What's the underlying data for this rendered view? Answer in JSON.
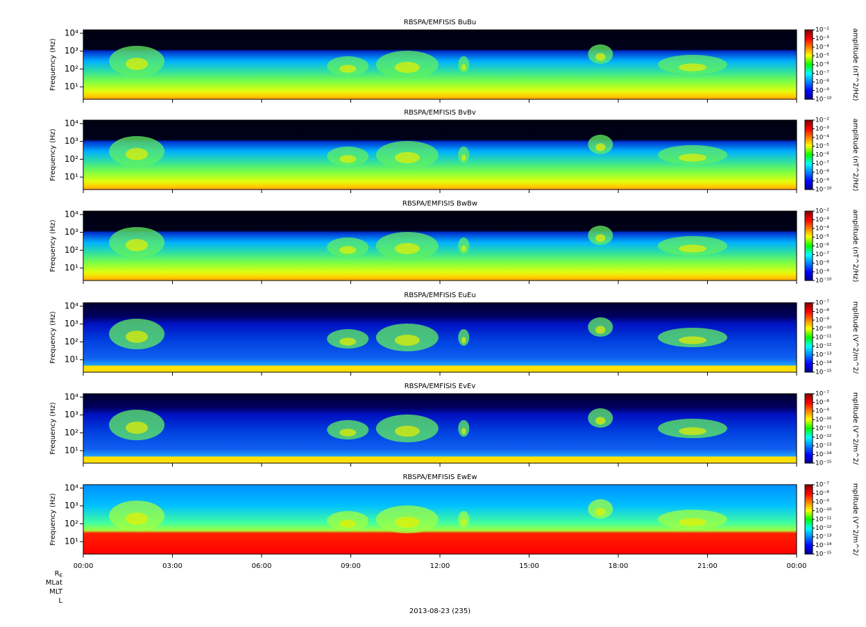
{
  "chart_data": [
    {
      "type": "spectrogram",
      "title": "RBSPA/EMFISIS  BuBu",
      "ylabel": "Frequency (Hz)",
      "ylim": [
        2,
        15600
      ],
      "log_y": true,
      "yticks": [
        {
          "value": 10,
          "label": "10¹"
        },
        {
          "value": 100,
          "label": "10²"
        },
        {
          "value": 1000,
          "label": "10³"
        },
        {
          "value": 10000,
          "label": "10⁴"
        }
      ],
      "colorbar_label": "amplitude (nT^2/Hz)",
      "clim": [
        1e-10,
        0.01
      ],
      "cticks": [
        {
          "value": 0.01,
          "label": "10⁻²"
        },
        {
          "value": 0.001,
          "label": "10⁻³"
        },
        {
          "value": 0.0001,
          "label": "10⁻⁴"
        },
        {
          "value": 1e-05,
          "label": "10⁻⁵"
        },
        {
          "value": 1e-06,
          "label": "10⁻⁶"
        },
        {
          "value": 1e-07,
          "label": "10⁻⁷"
        },
        {
          "value": 1e-08,
          "label": "10⁻⁸"
        },
        {
          "value": 1e-09,
          "label": "10⁻⁹"
        },
        {
          "value": 1e-10,
          "label": "10⁻¹⁰"
        }
      ]
    },
    {
      "type": "spectrogram",
      "title": "RBSPA/EMFISIS  BvBv",
      "ylabel": "Frequency (Hz)",
      "ylim": [
        2,
        15600
      ],
      "log_y": true,
      "yticks": [
        {
          "value": 10,
          "label": "10¹"
        },
        {
          "value": 100,
          "label": "10²"
        },
        {
          "value": 1000,
          "label": "10³"
        },
        {
          "value": 10000,
          "label": "10⁴"
        }
      ],
      "colorbar_label": "amplitude (nT^2/Hz)",
      "clim": [
        1e-10,
        0.01
      ],
      "cticks": [
        {
          "value": 0.01,
          "label": "10⁻²"
        },
        {
          "value": 0.001,
          "label": "10⁻³"
        },
        {
          "value": 0.0001,
          "label": "10⁻⁴"
        },
        {
          "value": 1e-05,
          "label": "10⁻⁵"
        },
        {
          "value": 1e-06,
          "label": "10⁻⁶"
        },
        {
          "value": 1e-07,
          "label": "10⁻⁷"
        },
        {
          "value": 1e-08,
          "label": "10⁻⁸"
        },
        {
          "value": 1e-09,
          "label": "10⁻⁹"
        },
        {
          "value": 1e-10,
          "label": "10⁻¹⁰"
        }
      ]
    },
    {
      "type": "spectrogram",
      "title": "RBSPA/EMFISIS  BwBw",
      "ylabel": "Frequency (Hz)",
      "ylim": [
        2,
        15600
      ],
      "log_y": true,
      "yticks": [
        {
          "value": 10,
          "label": "10¹"
        },
        {
          "value": 100,
          "label": "10²"
        },
        {
          "value": 1000,
          "label": "10³"
        },
        {
          "value": 10000,
          "label": "10⁴"
        }
      ],
      "colorbar_label": "amplitude (nT^2/Hz)",
      "clim": [
        1e-10,
        0.01
      ],
      "cticks": [
        {
          "value": 0.01,
          "label": "10⁻²"
        },
        {
          "value": 0.001,
          "label": "10⁻³"
        },
        {
          "value": 0.0001,
          "label": "10⁻⁴"
        },
        {
          "value": 1e-05,
          "label": "10⁻⁵"
        },
        {
          "value": 1e-06,
          "label": "10⁻⁶"
        },
        {
          "value": 1e-07,
          "label": "10⁻⁷"
        },
        {
          "value": 1e-08,
          "label": "10⁻⁸"
        },
        {
          "value": 1e-09,
          "label": "10⁻⁹"
        },
        {
          "value": 1e-10,
          "label": "10⁻¹⁰"
        }
      ]
    },
    {
      "type": "spectrogram",
      "title": "RBSPA/EMFISIS  EuEu",
      "ylabel": "Frequency (Hz)",
      "ylim": [
        2,
        15600
      ],
      "log_y": true,
      "yticks": [
        {
          "value": 10,
          "label": "10¹"
        },
        {
          "value": 100,
          "label": "10²"
        },
        {
          "value": 1000,
          "label": "10³"
        },
        {
          "value": 10000,
          "label": "10⁴"
        }
      ],
      "colorbar_label": "mplitude (V^2/m^2/",
      "clim": [
        1e-15,
        1e-07
      ],
      "cticks": [
        {
          "value": 1e-07,
          "label": "10⁻⁷"
        },
        {
          "value": 1e-08,
          "label": "10⁻⁸"
        },
        {
          "value": 1e-09,
          "label": "10⁻⁹"
        },
        {
          "value": 1e-10,
          "label": "10⁻¹⁰"
        },
        {
          "value": 1e-11,
          "label": "10⁻¹¹"
        },
        {
          "value": 1e-12,
          "label": "10⁻¹²"
        },
        {
          "value": 1e-13,
          "label": "10⁻¹³"
        },
        {
          "value": 1e-14,
          "label": "10⁻¹⁴"
        },
        {
          "value": 1e-15,
          "label": "10⁻¹⁵"
        }
      ]
    },
    {
      "type": "spectrogram",
      "title": "RBSPA/EMFISIS  EvEv",
      "ylabel": "Frequency (Hz)",
      "ylim": [
        2,
        15600
      ],
      "log_y": true,
      "yticks": [
        {
          "value": 10,
          "label": "10¹"
        },
        {
          "value": 100,
          "label": "10²"
        },
        {
          "value": 1000,
          "label": "10³"
        },
        {
          "value": 10000,
          "label": "10⁴"
        }
      ],
      "colorbar_label": "mplitude (V^2/m^2/",
      "clim": [
        1e-15,
        1e-07
      ],
      "cticks": [
        {
          "value": 1e-07,
          "label": "10⁻⁷"
        },
        {
          "value": 1e-08,
          "label": "10⁻⁸"
        },
        {
          "value": 1e-09,
          "label": "10⁻⁹"
        },
        {
          "value": 1e-10,
          "label": "10⁻¹⁰"
        },
        {
          "value": 1e-11,
          "label": "10⁻¹¹"
        },
        {
          "value": 1e-12,
          "label": "10⁻¹²"
        },
        {
          "value": 1e-13,
          "label": "10⁻¹³"
        },
        {
          "value": 1e-14,
          "label": "10⁻¹⁴"
        },
        {
          "value": 1e-15,
          "label": "10⁻¹⁵"
        }
      ]
    },
    {
      "type": "spectrogram",
      "title": "RBSPA/EMFISIS  EwEw",
      "ylabel": "Frequency (Hz)",
      "ylim": [
        2,
        15600
      ],
      "log_y": true,
      "yticks": [
        {
          "value": 10,
          "label": "10¹"
        },
        {
          "value": 100,
          "label": "10²"
        },
        {
          "value": 1000,
          "label": "10³"
        },
        {
          "value": 10000,
          "label": "10⁴"
        }
      ],
      "colorbar_label": "mplitude (V^2/m^2/",
      "clim": [
        1e-15,
        1e-07
      ],
      "cticks": [
        {
          "value": 1e-07,
          "label": "10⁻⁷"
        },
        {
          "value": 1e-08,
          "label": "10⁻⁸"
        },
        {
          "value": 1e-09,
          "label": "10⁻⁹"
        },
        {
          "value": 1e-10,
          "label": "10⁻¹⁰"
        },
        {
          "value": 1e-11,
          "label": "10⁻¹¹"
        },
        {
          "value": 1e-12,
          "label": "10⁻¹²"
        },
        {
          "value": 1e-13,
          "label": "10⁻¹³"
        },
        {
          "value": 1e-14,
          "label": "10⁻¹⁴"
        },
        {
          "value": 1e-15,
          "label": "10⁻¹⁵"
        }
      ]
    }
  ],
  "x_axis": {
    "xlim": [
      0,
      24
    ],
    "xticks": [
      {
        "value": 0,
        "label": "00:00"
      },
      {
        "value": 3,
        "label": "03:00"
      },
      {
        "value": 6,
        "label": "06:00"
      },
      {
        "value": 9,
        "label": "09:00"
      },
      {
        "value": 12,
        "label": "12:00"
      },
      {
        "value": 15,
        "label": "15:00"
      },
      {
        "value": 18,
        "label": "18:00"
      },
      {
        "value": 21,
        "label": "21:00"
      },
      {
        "value": 24,
        "label": "00:00"
      }
    ]
  },
  "footer": {
    "re": {
      "base": "R",
      "sub": "E"
    },
    "rows": [
      "MLat",
      "MLT",
      "L"
    ],
    "date": "2013-08-23 (235)"
  }
}
